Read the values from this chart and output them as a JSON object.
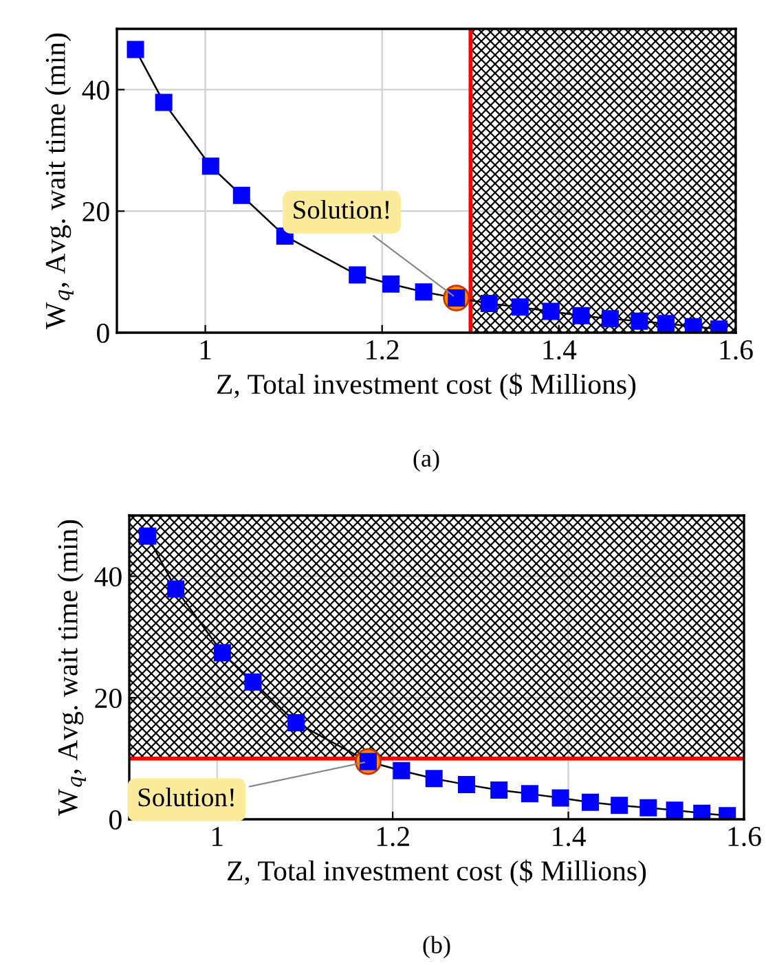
{
  "chart_data": [
    {
      "type": "line",
      "xlabel": "Z, Total investment cost ($ Millions)",
      "ylabel": "W$_{q}$, Avg. wait time (min)",
      "series": [
        {
          "color": "#0000ff",
          "marker": "square",
          "x": [
            0.921,
            0.953,
            1.006,
            1.041,
            1.09,
            1.172,
            1.21,
            1.247,
            1.284,
            1.321,
            1.356,
            1.391,
            1.425,
            1.458,
            1.491,
            1.521,
            1.552,
            1.581
          ],
          "values": [
            46.6,
            37.9,
            27.4,
            22.6,
            15.9,
            9.5,
            8.0,
            6.7,
            5.7,
            4.8,
            4.2,
            3.5,
            2.8,
            2.3,
            1.9,
            1.5,
            1.0,
            0.6
          ]
        },
        {
          "type": "scatter",
          "color": "#ff8c00",
          "marker": "circle",
          "x": [
            1.284
          ],
          "values": [
            5.7
          ]
        }
      ],
      "xlim": [
        0.9,
        1.6
      ],
      "ylim": [
        0,
        50
      ],
      "xticks": [
        1,
        1.2,
        1.4,
        1.6
      ],
      "yticks": [
        0,
        20,
        40
      ],
      "grid": true,
      "ref_lines": [
        {
          "axis": "x",
          "value": 1.3,
          "color": "#ff0000"
        }
      ],
      "bands": [
        {
          "axis": "x",
          "from": 1.3,
          "to": 1.6
        }
      ],
      "annotations": [
        {
          "text": "Solution!",
          "x": 1.284,
          "y": 5.7
        },
        "(a)"
      ]
    },
    {
      "type": "line",
      "xlabel": "Z, Total investment cost ($ Millions)",
      "ylabel": "W$_{q}$, Avg. wait time (min)",
      "series": [
        {
          "color": "#0000ff",
          "marker": "square",
          "x": [
            0.921,
            0.953,
            1.006,
            1.041,
            1.09,
            1.172,
            1.21,
            1.247,
            1.284,
            1.321,
            1.356,
            1.391,
            1.425,
            1.458,
            1.491,
            1.521,
            1.552,
            1.581
          ],
          "values": [
            46.6,
            37.9,
            27.4,
            22.6,
            15.9,
            9.5,
            8.0,
            6.7,
            5.7,
            4.8,
            4.2,
            3.5,
            2.8,
            2.3,
            1.9,
            1.5,
            1.0,
            0.6
          ]
        },
        {
          "type": "scatter",
          "color": "#ff8c00",
          "marker": "circle",
          "x": [
            1.172
          ],
          "values": [
            9.5
          ]
        }
      ],
      "xlim": [
        0.9,
        1.6
      ],
      "ylim": [
        0,
        50
      ],
      "xticks": [
        1,
        1.2,
        1.4,
        1.6
      ],
      "yticks": [
        0,
        20,
        40
      ],
      "grid": true,
      "ref_lines": [
        {
          "axis": "y",
          "value": 10,
          "color": "#ff0000"
        }
      ],
      "bands": [
        {
          "axis": "y",
          "from": 10,
          "to": 50
        }
      ],
      "annotations": [
        {
          "text": "Solution!",
          "x": 1.172,
          "y": 9.5
        },
        "(b)"
      ]
    }
  ]
}
